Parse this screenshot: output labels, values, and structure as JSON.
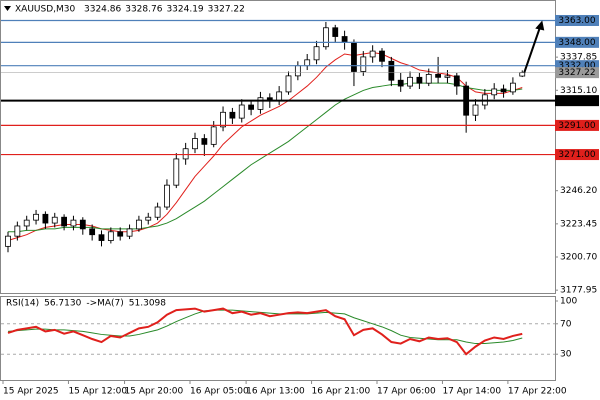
{
  "chart_data": [
    {
      "type": "candlestick",
      "title": "XAUUSD,M30",
      "ylim": [
        3176,
        3375
      ],
      "yticks": [
        {
          "value": 3177.95,
          "label": "3177.95"
        },
        {
          "value": 3200.7,
          "label": "3200.70"
        },
        {
          "value": 3223.45,
          "label": "3223.45"
        },
        {
          "value": 3246.2,
          "label": "3246.20"
        },
        {
          "value": 3315.1,
          "label": "3315.10"
        },
        {
          "value": 3337.85,
          "label": "3337.85"
        }
      ],
      "ohlc": [
        [
          3208,
          3218,
          3204,
          3215
        ],
        [
          3215,
          3225,
          3212,
          3222
        ],
        [
          3222,
          3229,
          3219,
          3226
        ],
        [
          3226,
          3233,
          3223,
          3230
        ],
        [
          3230,
          3232,
          3220,
          3224
        ],
        [
          3224,
          3231,
          3221,
          3228
        ],
        [
          3228,
          3230,
          3219,
          3222
        ],
        [
          3222,
          3229,
          3219,
          3226
        ],
        [
          3226,
          3228,
          3216,
          3220
        ],
        [
          3220,
          3223,
          3212,
          3216
        ],
        [
          3216,
          3219,
          3208,
          3212
        ],
        [
          3212,
          3221,
          3210,
          3218
        ],
        [
          3218,
          3221,
          3212,
          3215
        ],
        [
          3215,
          3223,
          3213,
          3220
        ],
        [
          3220,
          3229,
          3218,
          3226
        ],
        [
          3226,
          3231,
          3223,
          3228
        ],
        [
          3228,
          3238,
          3226,
          3235
        ],
        [
          3235,
          3254,
          3233,
          3250
        ],
        [
          3250,
          3272,
          3248,
          3268
        ],
        [
          3268,
          3279,
          3264,
          3275
        ],
        [
          3275,
          3286,
          3272,
          3282
        ],
        [
          3282,
          3285,
          3270,
          3278
        ],
        [
          3278,
          3294,
          3276,
          3290
        ],
        [
          3290,
          3304,
          3287,
          3300
        ],
        [
          3300,
          3303,
          3292,
          3296
        ],
        [
          3296,
          3309,
          3293,
          3305
        ],
        [
          3305,
          3308,
          3298,
          3302
        ],
        [
          3302,
          3314,
          3299,
          3310
        ],
        [
          3310,
          3313,
          3303,
          3308
        ],
        [
          3308,
          3318,
          3305,
          3314
        ],
        [
          3314,
          3328,
          3312,
          3325
        ],
        [
          3325,
          3335,
          3322,
          3332
        ],
        [
          3332,
          3340,
          3329,
          3336
        ],
        [
          3336,
          3349,
          3333,
          3345
        ],
        [
          3345,
          3362,
          3343,
          3358
        ],
        [
          3358,
          3360,
          3348,
          3352
        ],
        [
          3352,
          3356,
          3343,
          3348
        ],
        [
          3348,
          3350,
          3318,
          3328
        ],
        [
          3328,
          3342,
          3325,
          3338
        ],
        [
          3338,
          3346,
          3334,
          3342
        ],
        [
          3342,
          3344,
          3331,
          3335
        ],
        [
          3335,
          3338,
          3318,
          3322
        ],
        [
          3322,
          3327,
          3314,
          3318
        ],
        [
          3318,
          3328,
          3316,
          3324
        ],
        [
          3324,
          3327,
          3316,
          3320
        ],
        [
          3320,
          3330,
          3318,
          3326
        ],
        [
          3326,
          3338,
          3320,
          3324
        ],
        [
          3324,
          3329,
          3320,
          3325
        ],
        [
          3325,
          3327,
          3312,
          3318
        ],
        [
          3318,
          3321,
          3286,
          3298
        ],
        [
          3298,
          3309,
          3294,
          3305
        ],
        [
          3305,
          3316,
          3302,
          3312
        ],
        [
          3312,
          3320,
          3309,
          3316
        ],
        [
          3316,
          3319,
          3310,
          3314
        ],
        [
          3314,
          3324,
          3312,
          3320
        ],
        [
          3324.86,
          3328.76,
          3324.19,
          3327.22
        ]
      ],
      "moving_averages": [
        {
          "color": "#e0201c",
          "values": [
            3212,
            3214,
            3216,
            3219,
            3221,
            3222,
            3223,
            3223,
            3223,
            3222,
            3220,
            3219,
            3218,
            3218,
            3219,
            3221,
            3224,
            3230,
            3238,
            3247,
            3256,
            3263,
            3270,
            3278,
            3284,
            3290,
            3294,
            3298,
            3301,
            3304,
            3308,
            3313,
            3318,
            3324,
            3331,
            3336,
            3340,
            3339,
            3340,
            3341,
            3340,
            3337,
            3334,
            3332,
            3329,
            3328,
            3327,
            3326,
            3324,
            3318,
            3314,
            3313,
            3313,
            3313,
            3315,
            3317
          ]
        },
        {
          "color": "#2a8a2a",
          "values": [
            3218,
            3218,
            3219,
            3219,
            3220,
            3220,
            3221,
            3221,
            3221,
            3221,
            3220,
            3220,
            3220,
            3220,
            3220,
            3221,
            3222,
            3224,
            3227,
            3231,
            3235,
            3239,
            3244,
            3249,
            3254,
            3259,
            3264,
            3268,
            3272,
            3276,
            3280,
            3285,
            3290,
            3295,
            3300,
            3305,
            3309,
            3312,
            3315,
            3317,
            3318,
            3319,
            3319,
            3320,
            3320,
            3320,
            3320,
            3320,
            3319,
            3317,
            3316,
            3315,
            3315,
            3315,
            3315,
            3316
          ]
        }
      ],
      "levels": [
        {
          "value": 3363,
          "label": "3363.00",
          "color": "#4f80b9"
        },
        {
          "value": 3348,
          "label": "3348.00",
          "color": "#4f80b9"
        },
        {
          "value": 3332,
          "label": "3332.00",
          "color": "#4f80b9"
        },
        {
          "value": 3308,
          "label": "3308.00",
          "color": "#000000"
        },
        {
          "value": 3291,
          "label": "3291.00",
          "color": "#e0201c"
        },
        {
          "value": 3271,
          "label": "3271.00",
          "color": "#e0201c"
        }
      ],
      "current_price_color": "#9a9a9a"
    },
    {
      "type": "line",
      "ylim": [
        0,
        100
      ],
      "yticks": [
        100,
        70,
        30
      ],
      "dashed_levels": [
        70,
        30
      ],
      "series": [
        {
          "name": "RSI(14)",
          "last_label": "56.7130",
          "color": "#e0201c",
          "values": [
            58,
            62,
            64,
            66,
            60,
            62,
            57,
            60,
            55,
            50,
            46,
            54,
            52,
            58,
            64,
            66,
            72,
            82,
            88,
            89,
            90,
            86,
            88,
            90,
            84,
            86,
            82,
            84,
            80,
            82,
            84,
            85,
            84,
            86,
            88,
            80,
            76,
            55,
            62,
            64,
            56,
            46,
            44,
            50,
            47,
            52,
            50,
            51,
            46,
            30,
            40,
            48,
            52,
            50,
            54,
            56.713
          ]
        },
        {
          "name": "->MA(7)",
          "last_label": "51.3098",
          "color": "#2a8a2a",
          "values": [
            60,
            61,
            62,
            63,
            63,
            62,
            62,
            61,
            60,
            58,
            56,
            55,
            54,
            54,
            56,
            59,
            62,
            67,
            73,
            78,
            83,
            87,
            88,
            88,
            88,
            87,
            86,
            85,
            84,
            83,
            83,
            83,
            83,
            84,
            85,
            84,
            83,
            78,
            74,
            70,
            66,
            61,
            55,
            52,
            51,
            50,
            49,
            49,
            49,
            46,
            44,
            44,
            45,
            46,
            48,
            51.3098
          ]
        }
      ],
      "xticks": [
        {
          "value": 0,
          "label": "15 Apr 2025"
        },
        {
          "value": 7,
          "label": "15 Apr 12:00"
        },
        {
          "value": 13,
          "label": "15 Apr 20:00"
        },
        {
          "value": 20,
          "label": "16 Apr 05:00"
        },
        {
          "value": 26,
          "label": "16 Apr 13:00"
        },
        {
          "value": 33,
          "label": "16 Apr 21:00"
        },
        {
          "value": 40,
          "label": "17 Apr 06:00"
        },
        {
          "value": 47,
          "label": "17 Apr 14:00"
        },
        {
          "value": 54,
          "label": "17 Apr 22:00"
        }
      ]
    }
  ]
}
